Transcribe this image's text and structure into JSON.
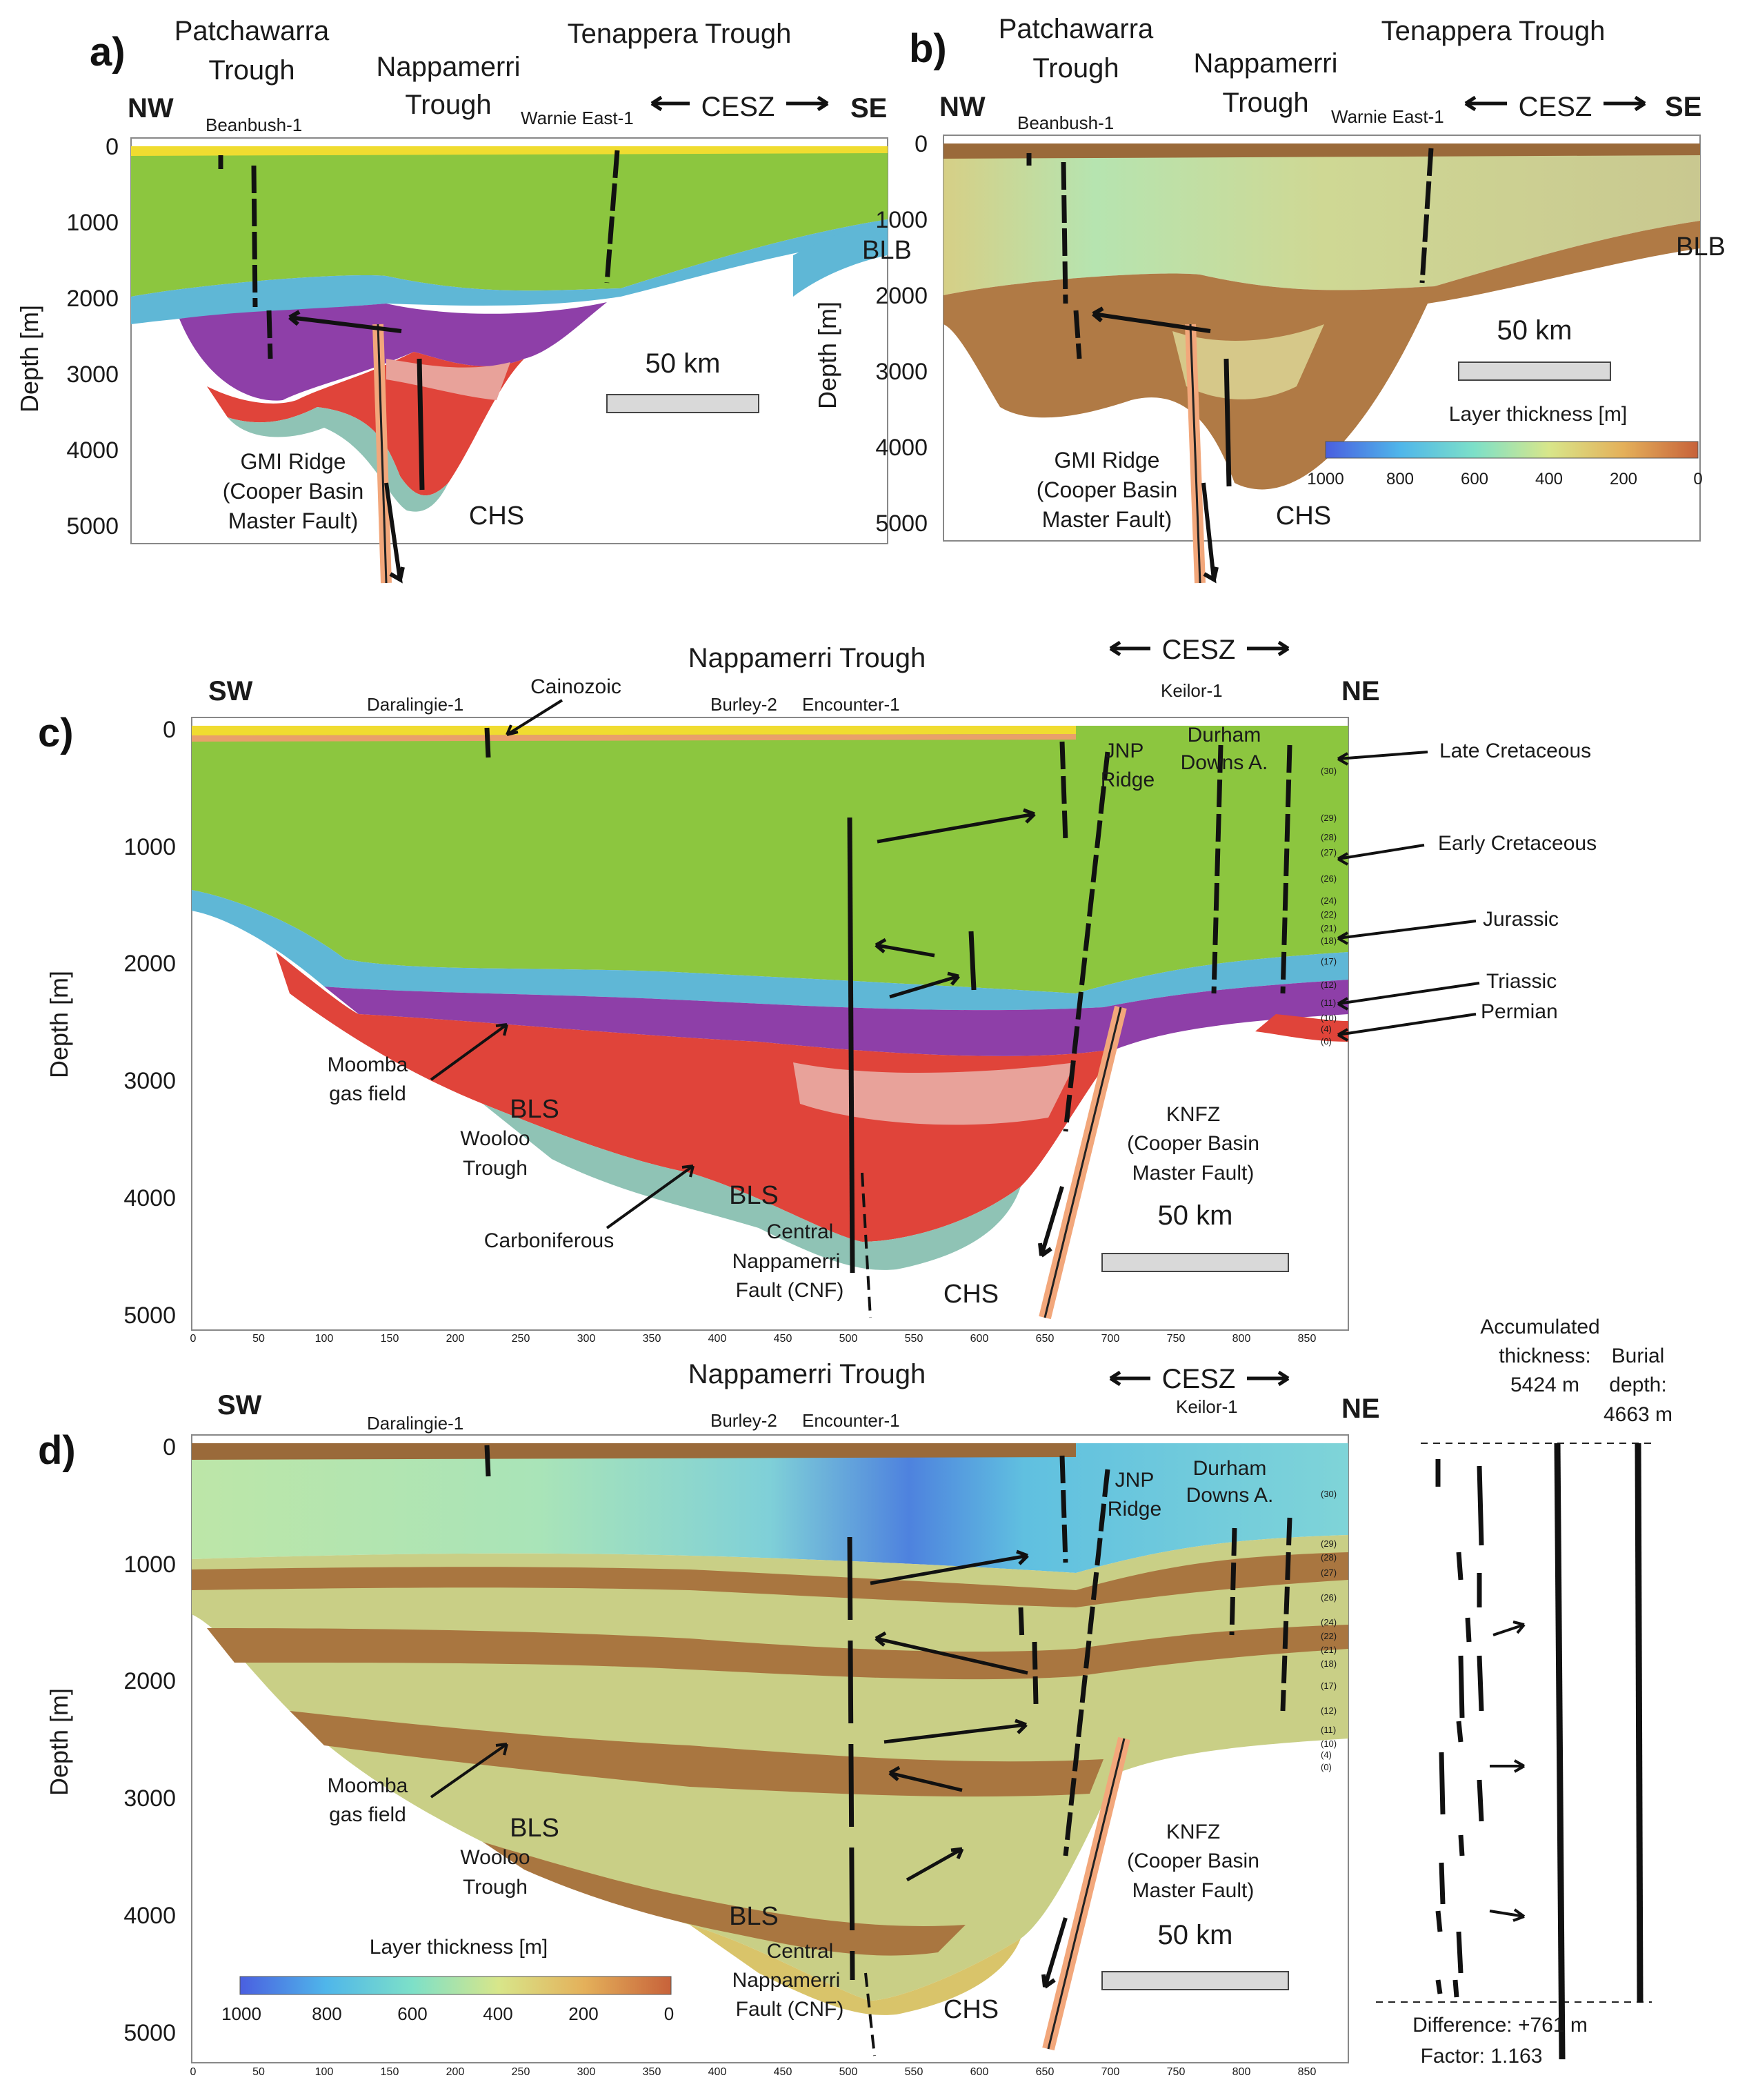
{
  "figure": {
    "panels": {
      "a": {
        "letter": "a)",
        "left_dir": "NW",
        "right_dir": "SE",
        "region_1": [
          "Patchawarra",
          "Trough"
        ],
        "region_2": [
          "Nappamerri",
          "Trough"
        ],
        "region_3": "Tenappera Trough",
        "cesz": "CESZ",
        "wells": [
          "Beanbush-1",
          "Warnie East-1"
        ],
        "blb": "BLB",
        "ridge": [
          "GMI Ridge",
          "(Cooper Basin",
          "Master Fault)"
        ],
        "chs": "CHS",
        "scale": "50 km",
        "depth_label": "Depth [m]",
        "depth_ticks": [
          "0",
          "1000",
          "2000",
          "3000",
          "4000",
          "5000"
        ]
      },
      "b": {
        "letter": "b)",
        "left_dir": "NW",
        "right_dir": "SE",
        "region_1": [
          "Patchawarra",
          "Trough"
        ],
        "region_2": [
          "Nappamerri",
          "Trough"
        ],
        "region_3": "Tenappera Trough",
        "cesz": "CESZ",
        "wells": [
          "Beanbush-1",
          "Warnie East-1"
        ],
        "blb": "BLB",
        "ridge": [
          "GMI Ridge",
          "(Cooper Basin",
          "Master Fault)"
        ],
        "chs": "CHS",
        "scale": "50 km",
        "depth_label": "Depth [m]",
        "depth_ticks": [
          "0",
          "1000",
          "2000",
          "3000",
          "4000",
          "5000"
        ],
        "colorbar_title": "Layer thickness [m]",
        "colorbar_ticks": [
          "1000",
          "800",
          "600",
          "400",
          "200",
          "0"
        ]
      },
      "c": {
        "letter": "c)",
        "title": "Nappamerri Trough",
        "cesz": "CESZ",
        "left_dir": "SW",
        "right_dir": "NE",
        "wells": [
          "Daralingie-1",
          "Burley-2",
          "Encounter-1",
          "Keilor-1"
        ],
        "cainozoic": "Cainozoic",
        "jnp": [
          "JNP",
          "Ridge"
        ],
        "durham": [
          "Durham",
          "Downs A."
        ],
        "units": [
          "Late Cretaceous",
          "Early Cretaceous",
          "Jurassic",
          "Triassic",
          "Permian"
        ],
        "moomba": [
          "Moomba",
          "gas field"
        ],
        "bls": "BLS",
        "wooloo": [
          "Wooloo",
          "Trough"
        ],
        "carboniferous": "Carboniferous",
        "cnf": [
          "Central",
          "Nappamerri",
          "Fault (CNF)"
        ],
        "chs": "CHS",
        "knfz": [
          "KNFZ",
          "(Cooper Basin",
          "Master Fault)"
        ],
        "scale": "50 km",
        "depth_label": "Depth [m]",
        "depth_ticks": [
          "0",
          "1000",
          "2000",
          "3000",
          "4000",
          "5000"
        ],
        "x_ticks": [
          "0",
          "50",
          "100",
          "150",
          "200",
          "250",
          "300",
          "350",
          "400",
          "450",
          "500",
          "550",
          "600",
          "650",
          "700",
          "750",
          "800",
          "850"
        ],
        "layer_numbers": [
          "(30)",
          "(29)",
          "(28)",
          "(27)",
          "(26)",
          "(24)",
          "(22)",
          "(21)",
          "(18)",
          "(17)",
          "(12)",
          "(11)",
          "(10)",
          "(4)",
          "(0)"
        ]
      },
      "d": {
        "letter": "d)",
        "title": "Nappamerri Trough",
        "cesz": "CESZ",
        "left_dir": "SW",
        "right_dir": "NE",
        "wells": [
          "Daralingie-1",
          "Burley-2",
          "Encounter-1",
          "Keilor-1"
        ],
        "jnp": [
          "JNP",
          "Ridge"
        ],
        "durham": [
          "Durham",
          "Downs A."
        ],
        "moomba": [
          "Moomba",
          "gas field"
        ],
        "bls": "BLS",
        "wooloo": [
          "Wooloo",
          "Trough"
        ],
        "cnf": [
          "Central",
          "Nappamerri",
          "Fault (CNF)"
        ],
        "chs": "CHS",
        "knfz": [
          "KNFZ",
          "(Cooper Basin",
          "Master Fault)"
        ],
        "scale": "50 km",
        "depth_label": "Depth [m]",
        "depth_ticks": [
          "0",
          "1000",
          "2000",
          "3000",
          "4000",
          "5000"
        ],
        "x_ticks": [
          "0",
          "50",
          "100",
          "150",
          "200",
          "250",
          "300",
          "350",
          "400",
          "450",
          "500",
          "550",
          "600",
          "650",
          "700",
          "750",
          "800",
          "850"
        ],
        "layer_numbers": [
          "(30)",
          "(29)",
          "(28)",
          "(27)",
          "(26)",
          "(24)",
          "(22)",
          "(21)",
          "(18)",
          "(17)",
          "(12)",
          "(11)",
          "(10)",
          "(4)",
          "(0)"
        ],
        "colorbar_title": "Layer thickness [m]",
        "colorbar_ticks": [
          "1000",
          "800",
          "600",
          "400",
          "200",
          "0"
        ],
        "accumulated": [
          "Accumulated",
          "thickness:",
          "5424 m"
        ],
        "burial": [
          "Burial",
          "depth:",
          "4663 m"
        ],
        "difference": "Difference: +761 m",
        "factor": "Factor: 1.163"
      }
    },
    "colors": {
      "green": "#8cc63f",
      "blue": "#5fb7d6",
      "purple": "#8e3fa8",
      "pink": "#e8a29a",
      "red": "#e0443a",
      "teal": "#8fc3b5",
      "yellow": "#f0dc30",
      "brown": "#9a6a3a",
      "salmon": "#e9a06a",
      "fault_orange": "#f2a77b"
    }
  }
}
